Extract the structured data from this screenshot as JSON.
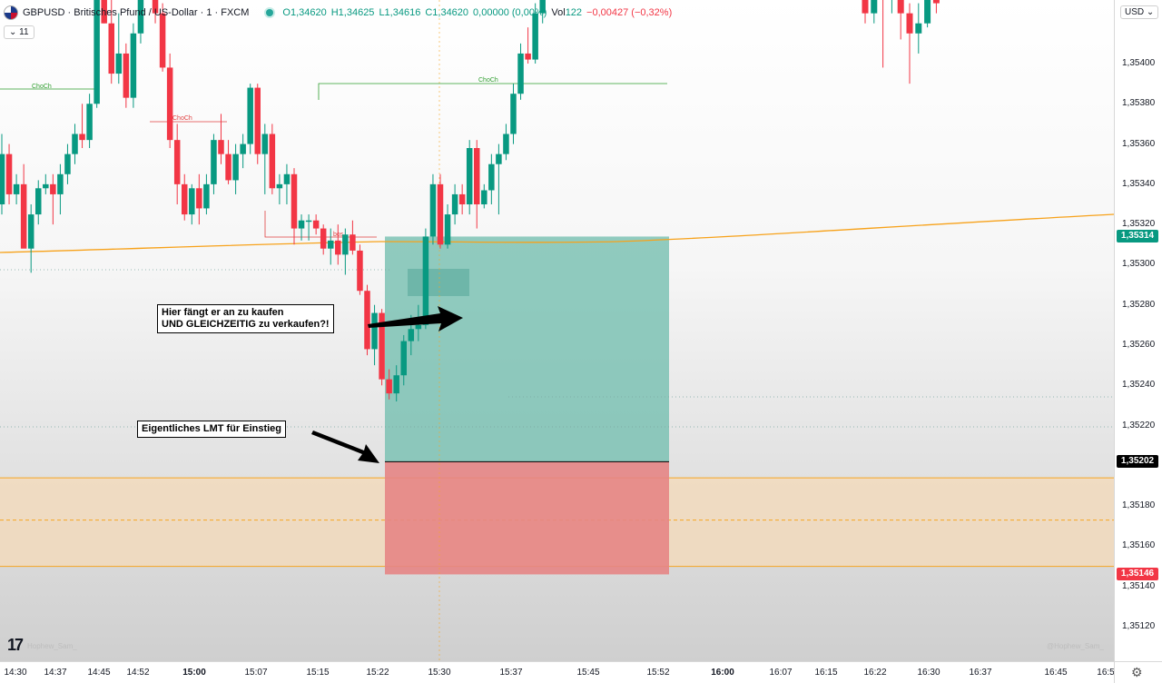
{
  "legend": {
    "symbol": "GBPUSD · Britisches Pfund / US-Dollar · 1 · FXCM",
    "open": "O1,34620",
    "high": "H1,34625",
    "low": "L1,34616",
    "close": "C1,34620",
    "change": "0,00000 (0,00%)",
    "vol_label": "Vol",
    "vol_value": "122",
    "vol_change": "−0,00427 (−0,32%)"
  },
  "indicator_toggle": "⌄ 11",
  "currency_select": "USD ⌄",
  "annotations": {
    "buy_sell_line1": "Hier fängt er an zu kaufen",
    "buy_sell_line2": "UND GLEICHZEITIG zu verkaufen?!",
    "limit_entry": "Eigentliches LMT für Einstieg"
  },
  "watermark_left": "Hophew_Sam_",
  "watermark_right": "@Hophew_Sam_",
  "chart_data": {
    "type": "candlestick",
    "price_ticks": [
      "1,35400",
      "1,35380",
      "1,35360",
      "1,35340",
      "1,35320",
      "1,35300",
      "1,35280",
      "1,35260",
      "1,35240",
      "1,35220",
      "1,35180",
      "1,35160",
      "1,35140",
      "1,35120"
    ],
    "time_ticks": [
      "14:30",
      "14:37",
      "14:45",
      "14:52",
      "15:00",
      "15:07",
      "15:15",
      "15:22",
      "15:30",
      "15:37",
      "15:45",
      "15:52",
      "16:00",
      "16:07",
      "16:15",
      "16:22",
      "16:30",
      "16:37",
      "16:45",
      "16:5"
    ],
    "price_badges": [
      {
        "label": "1,35314",
        "color": "#089981"
      },
      {
        "label": "1,35202",
        "color": "#000000"
      },
      {
        "label": "1,35146",
        "color": "#f23645"
      }
    ],
    "structure_labels": [
      {
        "text": "ChoCh",
        "color": "#2e9e2e"
      },
      {
        "text": "ChoCh",
        "color": "#e04040"
      },
      {
        "text": "ChoCh",
        "color": "#2e9e2e"
      },
      {
        "text": "bos",
        "color": "#e04040"
      }
    ],
    "position": {
      "type": "long",
      "entry": 1.35202,
      "target": 1.35314,
      "stop": 1.35146
    },
    "zone": {
      "top": 1.35194,
      "mid": 1.35173,
      "bottom": 1.3515
    },
    "candles": [
      {
        "o": 1.3533,
        "h": 1.35365,
        "l": 1.35325,
        "c": 1.35355
      },
      {
        "o": 1.35355,
        "h": 1.3536,
        "l": 1.3533,
        "c": 1.35335
      },
      {
        "o": 1.35335,
        "h": 1.35345,
        "l": 1.3533,
        "c": 1.3534
      },
      {
        "o": 1.3534,
        "h": 1.3535,
        "l": 1.3531,
        "c": 1.35308
      },
      {
        "o": 1.35308,
        "h": 1.3533,
        "l": 1.35296,
        "c": 1.35325
      },
      {
        "o": 1.35325,
        "h": 1.35342,
        "l": 1.3532,
        "c": 1.35338
      },
      {
        "o": 1.35338,
        "h": 1.35345,
        "l": 1.35335,
        "c": 1.3534
      },
      {
        "o": 1.3534,
        "h": 1.35345,
        "l": 1.3532,
        "c": 1.35335
      },
      {
        "o": 1.35335,
        "h": 1.3535,
        "l": 1.35325,
        "c": 1.35345
      },
      {
        "o": 1.35345,
        "h": 1.3536,
        "l": 1.3534,
        "c": 1.35355
      },
      {
        "o": 1.35355,
        "h": 1.3537,
        "l": 1.3535,
        "c": 1.35365
      },
      {
        "o": 1.35365,
        "h": 1.3538,
        "l": 1.35358,
        "c": 1.35362
      },
      {
        "o": 1.35362,
        "h": 1.35385,
        "l": 1.35358,
        "c": 1.3538
      },
      {
        "o": 1.3538,
        "h": 1.3544,
        "l": 1.35378,
        "c": 1.35435
      },
      {
        "o": 1.35435,
        "h": 1.3546,
        "l": 1.3542,
        "c": 1.3542
      },
      {
        "o": 1.3542,
        "h": 1.35465,
        "l": 1.3539,
        "c": 1.35395
      },
      {
        "o": 1.35395,
        "h": 1.35425,
        "l": 1.3539,
        "c": 1.35405
      },
      {
        "o": 1.35405,
        "h": 1.3541,
        "l": 1.35378,
        "c": 1.35383
      },
      {
        "o": 1.35383,
        "h": 1.3542,
        "l": 1.35378,
        "c": 1.35415
      },
      {
        "o": 1.35415,
        "h": 1.3546,
        "l": 1.3541,
        "c": 1.35455
      },
      {
        "o": 1.35455,
        "h": 1.35465,
        "l": 1.3544,
        "c": 1.35445
      },
      {
        "o": 1.35445,
        "h": 1.3546,
        "l": 1.3542,
        "c": 1.35425
      },
      {
        "o": 1.35425,
        "h": 1.3543,
        "l": 1.35396,
        "c": 1.35398
      },
      {
        "o": 1.35398,
        "h": 1.35405,
        "l": 1.35358,
        "c": 1.35362
      },
      {
        "o": 1.35362,
        "h": 1.3537,
        "l": 1.3533,
        "c": 1.3534
      },
      {
        "o": 1.3534,
        "h": 1.35345,
        "l": 1.35322,
        "c": 1.35325
      },
      {
        "o": 1.35325,
        "h": 1.3534,
        "l": 1.3532,
        "c": 1.35338
      },
      {
        "o": 1.35338,
        "h": 1.35345,
        "l": 1.3532,
        "c": 1.35328
      },
      {
        "o": 1.35328,
        "h": 1.35345,
        "l": 1.35325,
        "c": 1.3534
      },
      {
        "o": 1.3534,
        "h": 1.35365,
        "l": 1.35335,
        "c": 1.35362
      },
      {
        "o": 1.35362,
        "h": 1.35375,
        "l": 1.3535,
        "c": 1.35355
      },
      {
        "o": 1.35355,
        "h": 1.35362,
        "l": 1.3534,
        "c": 1.35342
      },
      {
        "o": 1.35342,
        "h": 1.3536,
        "l": 1.35335,
        "c": 1.35355
      },
      {
        "o": 1.35355,
        "h": 1.35365,
        "l": 1.35348,
        "c": 1.3536
      },
      {
        "o": 1.3536,
        "h": 1.3539,
        "l": 1.35355,
        "c": 1.35388
      },
      {
        "o": 1.35388,
        "h": 1.3539,
        "l": 1.3535,
        "c": 1.35355
      },
      {
        "o": 1.35355,
        "h": 1.3537,
        "l": 1.35335,
        "c": 1.35365
      },
      {
        "o": 1.35365,
        "h": 1.3537,
        "l": 1.35335,
        "c": 1.35338
      },
      {
        "o": 1.35338,
        "h": 1.35345,
        "l": 1.3533,
        "c": 1.3534
      },
      {
        "o": 1.3534,
        "h": 1.3535,
        "l": 1.3533,
        "c": 1.35345
      },
      {
        "o": 1.35345,
        "h": 1.35348,
        "l": 1.3531,
        "c": 1.35318
      },
      {
        "o": 1.35318,
        "h": 1.35325,
        "l": 1.35312,
        "c": 1.35322
      },
      {
        "o": 1.35322,
        "h": 1.35325,
        "l": 1.35312,
        "c": 1.35322
      },
      {
        "o": 1.35322,
        "h": 1.35325,
        "l": 1.35315,
        "c": 1.35318
      },
      {
        "o": 1.35318,
        "h": 1.3532,
        "l": 1.35305,
        "c": 1.35308
      },
      {
        "o": 1.35308,
        "h": 1.35318,
        "l": 1.353,
        "c": 1.35312
      },
      {
        "o": 1.35312,
        "h": 1.3532,
        "l": 1.353,
        "c": 1.35305
      },
      {
        "o": 1.35305,
        "h": 1.35318,
        "l": 1.35295,
        "c": 1.35315
      },
      {
        "o": 1.35315,
        "h": 1.35322,
        "l": 1.35305,
        "c": 1.35307
      },
      {
        "o": 1.35307,
        "h": 1.3531,
        "l": 1.35285,
        "c": 1.35287
      },
      {
        "o": 1.35287,
        "h": 1.3529,
        "l": 1.35255,
        "c": 1.35258
      },
      {
        "o": 1.35258,
        "h": 1.3528,
        "l": 1.3525,
        "c": 1.35276
      },
      {
        "o": 1.35276,
        "h": 1.35278,
        "l": 1.3524,
        "c": 1.35243
      },
      {
        "o": 1.35243,
        "h": 1.35248,
        "l": 1.35233,
        "c": 1.35236
      },
      {
        "o": 1.35236,
        "h": 1.3525,
        "l": 1.35232,
        "c": 1.35245
      },
      {
        "o": 1.35245,
        "h": 1.35265,
        "l": 1.3524,
        "c": 1.35262
      },
      {
        "o": 1.35262,
        "h": 1.35275,
        "l": 1.35255,
        "c": 1.35268
      },
      {
        "o": 1.35268,
        "h": 1.3528,
        "l": 1.35262,
        "c": 1.3527
      },
      {
        "o": 1.3527,
        "h": 1.35318,
        "l": 1.35268,
        "c": 1.35314
      },
      {
        "o": 1.35314,
        "h": 1.35345,
        "l": 1.3531,
        "c": 1.3534
      },
      {
        "o": 1.3534,
        "h": 1.35345,
        "l": 1.35308,
        "c": 1.3531
      },
      {
        "o": 1.3531,
        "h": 1.3533,
        "l": 1.35308,
        "c": 1.35325
      },
      {
        "o": 1.35325,
        "h": 1.3534,
        "l": 1.3532,
        "c": 1.35335
      },
      {
        "o": 1.35335,
        "h": 1.3534,
        "l": 1.35325,
        "c": 1.3533
      },
      {
        "o": 1.3533,
        "h": 1.35362,
        "l": 1.35325,
        "c": 1.35358
      },
      {
        "o": 1.35358,
        "h": 1.35362,
        "l": 1.35318,
        "c": 1.3533
      },
      {
        "o": 1.3533,
        "h": 1.3534,
        "l": 1.35328,
        "c": 1.35337
      },
      {
        "o": 1.35337,
        "h": 1.35355,
        "l": 1.3533,
        "c": 1.3535
      },
      {
        "o": 1.3535,
        "h": 1.3536,
        "l": 1.35325,
        "c": 1.35355
      },
      {
        "o": 1.35355,
        "h": 1.3537,
        "l": 1.35352,
        "c": 1.35365
      },
      {
        "o": 1.35365,
        "h": 1.3539,
        "l": 1.3536,
        "c": 1.35385
      },
      {
        "o": 1.35385,
        "h": 1.3541,
        "l": 1.35382,
        "c": 1.35405
      },
      {
        "o": 1.35405,
        "h": 1.35418,
        "l": 1.354,
        "c": 1.35402
      },
      {
        "o": 1.35402,
        "h": 1.3543,
        "l": 1.354,
        "c": 1.35425
      },
      {
        "o": 1.35425,
        "h": 1.3546,
        "l": 1.3542,
        "c": 1.35455
      }
    ],
    "late_candles": [
      {
        "o": 1.3544,
        "h": 1.35445,
        "l": 1.3542,
        "c": 1.35425
      },
      {
        "o": 1.35425,
        "h": 1.3545,
        "l": 1.3542,
        "c": 1.35445
      },
      {
        "o": 1.35445,
        "h": 1.3545,
        "l": 1.35398,
        "c": 1.35432
      },
      {
        "o": 1.35432,
        "h": 1.3545,
        "l": 1.35425,
        "c": 1.3544
      },
      {
        "o": 1.3544,
        "h": 1.35445,
        "l": 1.35412,
        "c": 1.35425
      },
      {
        "o": 1.35425,
        "h": 1.3543,
        "l": 1.3539,
        "c": 1.35415
      },
      {
        "o": 1.35415,
        "h": 1.3543,
        "l": 1.35405,
        "c": 1.3542
      },
      {
        "o": 1.3542,
        "h": 1.3545,
        "l": 1.35418,
        "c": 1.35445
      },
      {
        "o": 1.35445,
        "h": 1.3545,
        "l": 1.35425,
        "c": 1.3543
      }
    ]
  },
  "colors": {
    "up": "#089981",
    "down": "#f23645",
    "ema": "#f7a21b",
    "target_zone": "#76bfb0",
    "stop_zone": "#e58585",
    "orange_zone": "#f4d9b8"
  }
}
